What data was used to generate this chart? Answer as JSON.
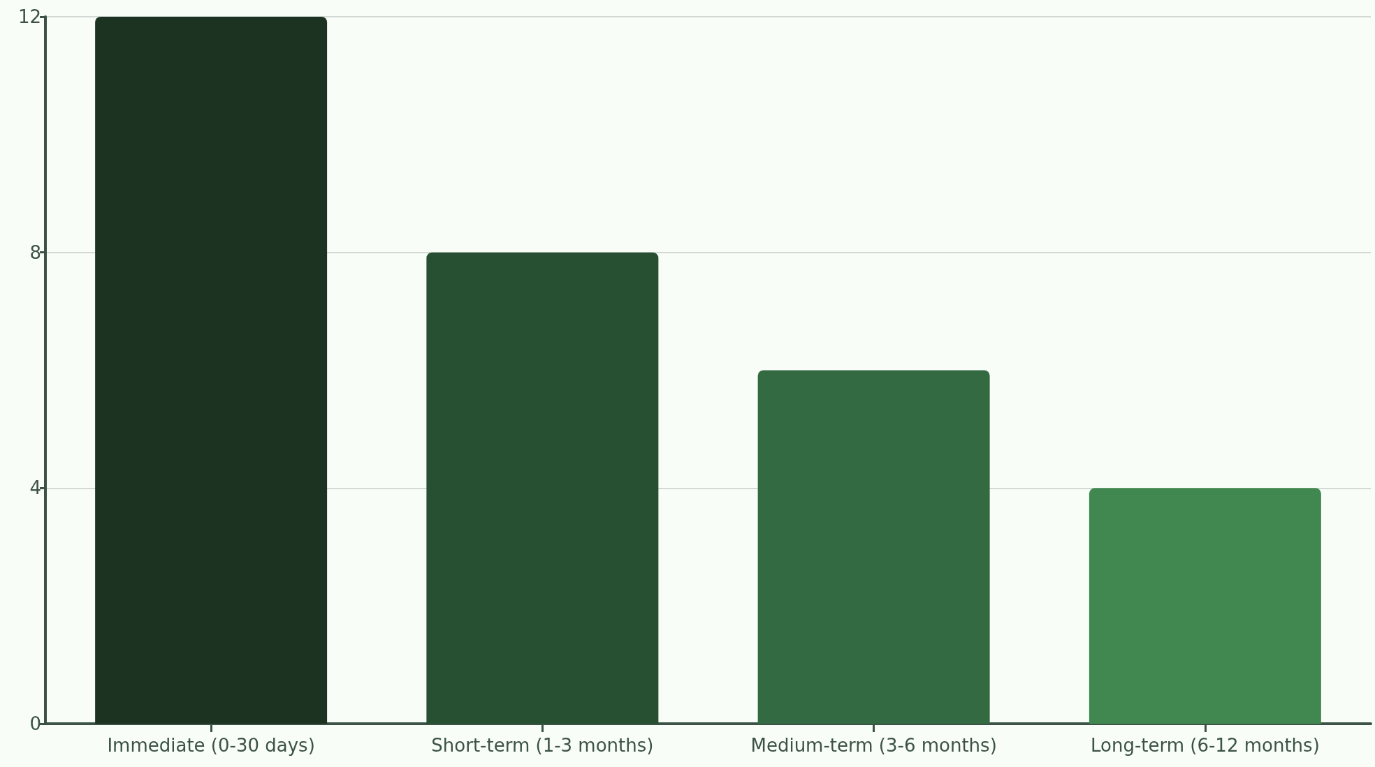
{
  "chart_data": {
    "type": "bar",
    "categories": [
      "Immediate (0-30 days)",
      "Short-term (1-3 months)",
      "Medium-term (3-6 months)",
      "Long-term (6-12 months)"
    ],
    "values": [
      12,
      8,
      6,
      4
    ],
    "colors": [
      "#1b3320",
      "#274f31",
      "#336a42",
      "#418850"
    ],
    "ylim": [
      0,
      12
    ],
    "yticks": [
      0,
      4,
      8,
      12
    ],
    "grid": "y"
  }
}
